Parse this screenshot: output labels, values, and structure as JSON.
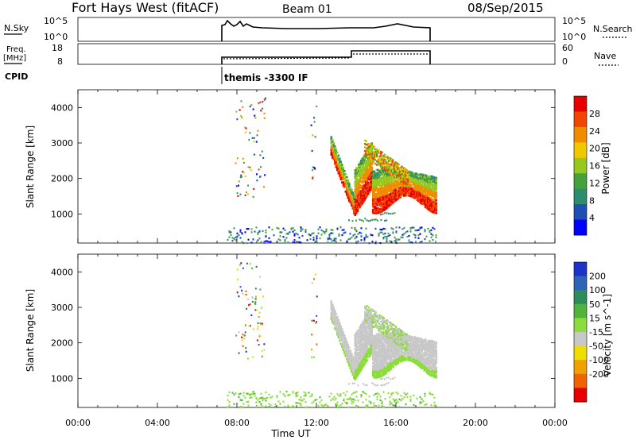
{
  "header": {
    "station": "Fort Hays West (fitACF)",
    "beam": "Beam 01",
    "date": "08/Sep/2015"
  },
  "time_axis": {
    "label": "Time UT",
    "ticks": [
      "00:00",
      "04:00",
      "08:00",
      "12:00",
      "16:00",
      "20:00",
      "00:00"
    ],
    "range_hours": [
      0,
      24
    ]
  },
  "top_panels": {
    "nsky": {
      "left_label": "N.Sky",
      "right_label": "N.Search",
      "left_ticks": [
        "10^5",
        "10^0"
      ],
      "right_ticks": [
        "10^5",
        "10^0"
      ]
    },
    "freq": {
      "left_label_1": "Freq.",
      "left_label_2": "[MHz]",
      "left_ticks": [
        "18",
        "8"
      ],
      "right_ticks": [
        "60",
        "0"
      ],
      "right_label": "Nave"
    },
    "cpid": {
      "label": "CPID",
      "text": "themis -3300 IF"
    }
  },
  "chart_data": [
    {
      "type": "heatmap",
      "name": "power",
      "ylabel": "Slant Range [km]",
      "xlabel": "Time UT",
      "ylim": [
        180,
        4500
      ],
      "yticks": [
        1000,
        2000,
        3000,
        4000
      ],
      "xlim": [
        0,
        24
      ],
      "colorbar": {
        "label": "Power [dB]",
        "ticks": [
          "4",
          "8",
          "12",
          "16",
          "20",
          "24",
          "28"
        ],
        "scale": [
          "#0000ff",
          "#1e50b4",
          "#2d8c6e",
          "#46a03c",
          "#96c81e",
          "#f0c800",
          "#f08c00",
          "#f04600",
          "#e60000"
        ]
      }
    },
    {
      "type": "heatmap",
      "name": "velocity",
      "ylabel": "Slant Range [km]",
      "xlabel": "Time UT",
      "ylim": [
        180,
        4500
      ],
      "yticks": [
        1000,
        2000,
        3000,
        4000
      ],
      "xlim": [
        0,
        24
      ],
      "colorbar": {
        "label": "Velocity [m s^-1]",
        "ticks": [
          "200",
          "100",
          "50",
          "15",
          "-15",
          "-50",
          "-100",
          "-200"
        ],
        "scale": [
          "#1e32c8",
          "#2d64b4",
          "#2d8c5a",
          "#50b43c",
          "#8cdc3c",
          "#c8c8c8",
          "#f0dc00",
          "#f0a000",
          "#f06400",
          "#e60000"
        ]
      }
    }
  ]
}
